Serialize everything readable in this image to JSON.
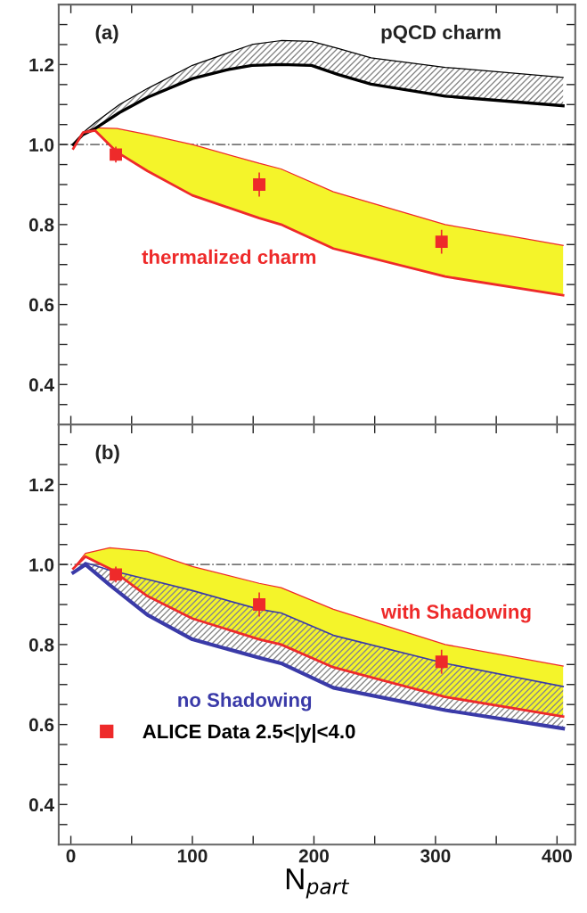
{
  "chart_data": [
    {
      "type": "line",
      "xlim": [
        -10,
        415
      ],
      "ylim": [
        0.3,
        1.35
      ],
      "xticks": [
        0,
        {
          "value": 50,
          "label": null
        },
        100,
        {
          "value": 150,
          "label": null
        },
        200,
        {
          "value": 250,
          "label": null
        },
        300,
        {
          "value": 350,
          "label": null
        },
        400
      ],
      "yticks": [
        {
          "value": 0.35,
          "label": null
        },
        {
          "value": 0.4,
          "label": "0.4"
        },
        {
          "value": 0.45,
          "label": null
        },
        {
          "value": 0.5,
          "label": null
        },
        {
          "value": 0.55,
          "label": null
        },
        {
          "value": 0.6,
          "label": "0.6"
        },
        {
          "value": 0.65,
          "label": null
        },
        {
          "value": 0.7,
          "label": null
        },
        {
          "value": 0.75,
          "label": null
        },
        {
          "value": 0.8,
          "label": "0.8"
        },
        {
          "value": 0.85,
          "label": null
        },
        {
          "value": 0.9,
          "label": null
        },
        {
          "value": 0.95,
          "label": null
        },
        {
          "value": 1.0,
          "label": "1.0"
        },
        {
          "value": 1.05,
          "label": null
        },
        {
          "value": 1.1,
          "label": null
        },
        {
          "value": 1.15,
          "label": null
        },
        {
          "value": 1.2,
          "label": "1.2"
        },
        {
          "value": 1.25,
          "label": null
        },
        {
          "value": 1.3,
          "label": null
        }
      ],
      "tick_labels": "y",
      "grid": false,
      "legend": false,
      "ref_lines": [
        {
          "axis": "y",
          "value": 1.0,
          "color": "#777777",
          "line_style": "dashdot"
        }
      ],
      "annotations": [
        "(a)",
        "pQCD charm",
        "thermalized charm"
      ],
      "series": [
        {
          "color": "#000000",
          "x": [
            2,
            10,
            20,
            40,
            63,
            100,
            130,
            149,
            173,
            198,
            220,
            247,
            308,
            405
          ],
          "values": [
            1.0,
            1.03,
            1.055,
            1.1,
            1.14,
            1.198,
            1.23,
            1.25,
            1.26,
            1.258,
            1.24,
            1.217,
            1.193,
            1.168
          ]
        },
        {
          "color": "#000000",
          "x": [
            2,
            10,
            20,
            40,
            63,
            100,
            130,
            149,
            173,
            198,
            220,
            247,
            308,
            405
          ],
          "values": [
            1.0,
            1.025,
            1.04,
            1.08,
            1.118,
            1.165,
            1.188,
            1.198,
            1.2,
            1.198,
            1.175,
            1.151,
            1.121,
            1.097
          ],
          "lower": [
            1.0,
            1.025,
            1.04,
            1.08,
            1.118,
            1.165,
            1.188,
            1.198,
            1.2,
            1.198,
            1.175,
            1.151,
            1.121,
            1.097
          ],
          "upper": [
            1.0,
            1.03,
            1.055,
            1.1,
            1.14,
            1.198,
            1.23,
            1.25,
            1.26,
            1.258,
            1.24,
            1.217,
            1.193,
            1.168
          ]
        },
        {
          "color": "#ee2a2a",
          "x": [
            2,
            10,
            20,
            38,
            63,
            100,
            155,
            173,
            216,
            308,
            405
          ],
          "values": [
            1.0,
            1.03,
            1.042,
            1.04,
            1.025,
            1.0,
            0.953,
            0.939,
            0.882,
            0.8,
            0.748
          ]
        },
        {
          "color": "#ee2a2a",
          "x": [
            2,
            10,
            20,
            38,
            63,
            100,
            155,
            173,
            216,
            308,
            405
          ],
          "values": [
            0.99,
            1.03,
            1.035,
            0.981,
            0.934,
            0.873,
            0.816,
            0.8,
            0.74,
            0.67,
            0.623
          ],
          "lower": [
            0.99,
            1.03,
            1.035,
            0.981,
            0.934,
            0.873,
            0.816,
            0.8,
            0.74,
            0.67,
            0.623
          ],
          "upper": [
            1.0,
            1.03,
            1.042,
            1.04,
            1.025,
            1.0,
            0.953,
            0.939,
            0.882,
            0.8,
            0.748
          ]
        },
        {
          "type": "scatter",
          "marker": "square",
          "color": "#ee2a2a",
          "x": [
            37,
            155,
            305
          ],
          "values": [
            0.975,
            0.9,
            0.757
          ],
          "errors": [
            0.02,
            0.03,
            0.03
          ]
        }
      ]
    },
    {
      "type": "line",
      "xlim": [
        -10,
        415
      ],
      "ylim": [
        0.3,
        1.35
      ],
      "xlabel": "N$_{part}$",
      "xticks": [
        0,
        {
          "value": 50,
          "label": null
        },
        100,
        {
          "value": 150,
          "label": null
        },
        200,
        {
          "value": 250,
          "label": null
        },
        300,
        {
          "value": 350,
          "label": null
        },
        400
      ],
      "yticks": [
        {
          "value": 0.35,
          "label": null
        },
        {
          "value": 0.4,
          "label": "0.4"
        },
        {
          "value": 0.45,
          "label": null
        },
        {
          "value": 0.5,
          "label": null
        },
        {
          "value": 0.55,
          "label": null
        },
        {
          "value": 0.6,
          "label": "0.6"
        },
        {
          "value": 0.65,
          "label": null
        },
        {
          "value": 0.7,
          "label": null
        },
        {
          "value": 0.75,
          "label": null
        },
        {
          "value": 0.8,
          "label": "0.8"
        },
        {
          "value": 0.85,
          "label": null
        },
        {
          "value": 0.9,
          "label": null
        },
        {
          "value": 0.95,
          "label": null
        },
        {
          "value": 1.0,
          "label": "1.0"
        },
        {
          "value": 1.05,
          "label": null
        },
        {
          "value": 1.1,
          "label": null
        },
        {
          "value": 1.15,
          "label": null
        },
        {
          "value": 1.2,
          "label": "1.2"
        },
        {
          "value": 1.25,
          "label": null
        },
        {
          "value": 1.3,
          "label": null
        }
      ],
      "grid": false,
      "legend": "bottom left",
      "ref_lines": [
        {
          "axis": "y",
          "value": 1.0,
          "color": "#777777",
          "line_style": "dashdot"
        }
      ],
      "annotations": [
        "(b)",
        "with Shadowing",
        "no Shadowing"
      ],
      "series": [
        {
          "color": "#ee2a2a",
          "x": [
            2,
            12,
            32,
            63,
            100,
            155,
            173,
            216,
            308,
            405
          ],
          "values": [
            0.99,
            1.028,
            1.042,
            1.033,
            0.995,
            0.953,
            0.942,
            0.888,
            0.8,
            0.746
          ]
        },
        {
          "color": "#ee2a2a",
          "x": [
            2,
            12,
            32,
            63,
            100,
            155,
            173,
            216,
            308,
            405
          ],
          "values": [
            0.99,
            1.02,
            0.99,
            0.921,
            0.865,
            0.813,
            0.8,
            0.743,
            0.669,
            0.62
          ],
          "lower": [
            0.99,
            1.02,
            0.99,
            0.921,
            0.865,
            0.813,
            0.8,
            0.743,
            0.669,
            0.62
          ],
          "upper": [
            0.99,
            1.028,
            1.042,
            1.033,
            0.995,
            0.953,
            0.942,
            0.888,
            0.8,
            0.746
          ]
        },
        {
          "color": "#3a3aa8",
          "x": [
            2,
            12,
            32,
            63,
            100,
            155,
            173,
            216,
            308,
            405
          ],
          "values": [
            0.98,
            1.005,
            0.986,
            0.963,
            0.935,
            0.888,
            0.879,
            0.823,
            0.753,
            0.695
          ]
        },
        {
          "color": "#3a3aa8",
          "x": [
            2,
            12,
            32,
            63,
            100,
            155,
            173,
            216,
            308,
            405
          ],
          "values": [
            0.98,
            1.0,
            0.949,
            0.874,
            0.813,
            0.767,
            0.753,
            0.692,
            0.636,
            0.59
          ],
          "lower": [
            0.98,
            1.0,
            0.949,
            0.874,
            0.813,
            0.767,
            0.753,
            0.692,
            0.636,
            0.59
          ],
          "upper": [
            0.98,
            1.005,
            0.986,
            0.963,
            0.935,
            0.888,
            0.879,
            0.823,
            0.753,
            0.695
          ]
        },
        {
          "type": "scatter",
          "name": "ALICE Data 2.5<|y|<4.0",
          "marker": "square",
          "color": "#ee2a2a",
          "x": [
            37,
            155,
            305
          ],
          "values": [
            0.975,
            0.9,
            0.757
          ],
          "errors": [
            0.02,
            0.03,
            0.03
          ]
        }
      ]
    }
  ]
}
